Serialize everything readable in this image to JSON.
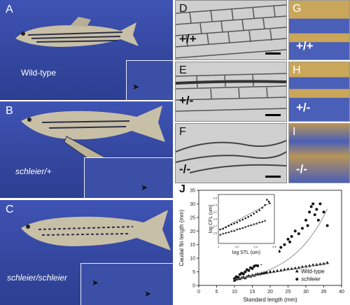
{
  "panels": {
    "A": {
      "label": "A",
      "caption": "Wild-type"
    },
    "B": {
      "label": "B",
      "caption": "schleier/+"
    },
    "C": {
      "label": "C",
      "caption": "schleier/schleier"
    },
    "D": {
      "label": "D",
      "genotype": "+/+"
    },
    "E": {
      "label": "E",
      "genotype": "+/-"
    },
    "F": {
      "label": "F",
      "genotype": "-/-"
    },
    "G": {
      "label": "G",
      "genotype": "+/+"
    },
    "H": {
      "label": "H",
      "genotype": "+/-"
    },
    "I": {
      "label": "I",
      "genotype": "-/-"
    },
    "J": {
      "label": "J"
    }
  },
  "colors": {
    "background_blue": "#34479f",
    "fin_blue": "#4a5fb8",
    "fin_gold": "#c9a65a"
  },
  "icons": [
    "arrowhead-icon"
  ],
  "chart_data": [
    {
      "type": "scatter",
      "xlabel": "Standard length (mm)",
      "ylabel": "Caudal fin length (mm)",
      "xlim": [
        0,
        40
      ],
      "ylim": [
        0,
        35
      ],
      "xticks": [
        "0",
        "5",
        "10",
        "15",
        "20",
        "25",
        "30",
        "35",
        "40"
      ],
      "yticks": [
        "0",
        "5",
        "10",
        "15",
        "20",
        "25",
        "30",
        "35"
      ],
      "legend": {
        "position": "bottom-right",
        "entries": [
          {
            "label": "Wild-type",
            "marker": "triangle"
          },
          {
            "label": "schleier",
            "marker": "circle"
          }
        ]
      },
      "series": [
        {
          "name": "Wild-type",
          "points": [
            [
              10,
              1.8
            ],
            [
              10.5,
              2.2
            ],
            [
              11,
              2.5
            ],
            [
              11.5,
              2.4
            ],
            [
              12,
              2.8
            ],
            [
              12.5,
              3
            ],
            [
              13,
              2.7
            ],
            [
              13.5,
              3.2
            ],
            [
              14,
              3.5
            ],
            [
              14.5,
              3.3
            ],
            [
              15,
              3.7
            ],
            [
              15.5,
              3.6
            ],
            [
              16,
              4
            ],
            [
              16.5,
              4.2
            ],
            [
              17,
              4.1
            ],
            [
              17.5,
              4.4
            ],
            [
              18,
              4.5
            ],
            [
              18.5,
              4.6
            ],
            [
              19,
              4.8
            ],
            [
              20,
              5
            ],
            [
              21,
              5.1
            ],
            [
              22,
              5.3
            ],
            [
              23,
              5.5
            ],
            [
              24,
              5.8
            ],
            [
              25,
              6
            ],
            [
              26,
              6.1
            ],
            [
              27,
              6.3
            ],
            [
              28,
              6.5
            ],
            [
              29,
              6.8
            ],
            [
              30,
              7
            ],
            [
              31,
              7.2
            ],
            [
              32,
              7.5
            ],
            [
              33,
              7.6
            ],
            [
              34,
              7.8
            ],
            [
              35,
              8
            ],
            [
              36,
              8.3
            ]
          ]
        },
        {
          "name": "schleier",
          "points": [
            [
              10,
              2.5
            ],
            [
              10.5,
              3.2
            ],
            [
              11,
              3
            ],
            [
              11.5,
              4
            ],
            [
              12,
              4.5
            ],
            [
              12.5,
              4.2
            ],
            [
              13,
              5
            ],
            [
              13.5,
              5.8
            ],
            [
              14,
              5.5
            ],
            [
              14.5,
              6.5
            ],
            [
              15,
              6.2
            ],
            [
              15.5,
              7
            ],
            [
              16,
              7.5
            ],
            [
              16.5,
              7.2
            ],
            [
              17,
              8.5
            ],
            [
              17.5,
              8
            ],
            [
              18,
              9
            ],
            [
              18.5,
              9.5
            ],
            [
              19,
              10
            ],
            [
              19.5,
              9.8
            ],
            [
              20,
              11
            ],
            [
              20.5,
              11.5
            ],
            [
              21,
              12
            ],
            [
              22,
              13
            ],
            [
              22.5,
              12.5
            ],
            [
              23,
              14
            ],
            [
              24,
              15
            ],
            [
              25,
              17
            ],
            [
              25.5,
              16
            ],
            [
              26,
              18
            ],
            [
              27,
              20
            ],
            [
              28,
              19
            ],
            [
              29,
              21
            ],
            [
              30,
              24
            ],
            [
              30.5,
              22
            ],
            [
              31,
              27
            ],
            [
              31.5,
              29
            ],
            [
              32,
              30
            ],
            [
              32.5,
              26
            ],
            [
              33,
              28
            ],
            [
              33.5,
              24
            ],
            [
              34,
              30
            ],
            [
              35,
              27
            ],
            [
              36,
              22
            ]
          ]
        }
      ]
    },
    {
      "type": "scatter",
      "xlabel": "log STL (um)",
      "ylabel": "log CFL (um)",
      "xlim": [
        4,
        4.6
      ],
      "ylim": [
        3.2,
        4.6
      ],
      "xticks": [
        "4",
        "4.2",
        "4.4",
        "4.6"
      ],
      "yticks": [
        "4.5",
        "4.3",
        "4.1",
        "3.9",
        "3.7",
        "3.5"
      ],
      "series": [
        {
          "name": "Wild-type",
          "points": [
            [
              4.02,
              3.45
            ],
            [
              4.05,
              3.48
            ],
            [
              4.08,
              3.5
            ],
            [
              4.11,
              3.52
            ],
            [
              4.14,
              3.55
            ],
            [
              4.17,
              3.56
            ],
            [
              4.2,
              3.6
            ],
            [
              4.23,
              3.62
            ],
            [
              4.26,
              3.64
            ],
            [
              4.29,
              3.67
            ],
            [
              4.32,
              3.7
            ],
            [
              4.35,
              3.72
            ],
            [
              4.38,
              3.75
            ],
            [
              4.41,
              3.77
            ],
            [
              4.44,
              3.8
            ],
            [
              4.47,
              3.82
            ],
            [
              4.5,
              3.85
            ]
          ]
        },
        {
          "name": "schleier",
          "points": [
            [
              4.02,
              3.6
            ],
            [
              4.05,
              3.62
            ],
            [
              4.08,
              3.66
            ],
            [
              4.11,
              3.7
            ],
            [
              4.14,
              3.74
            ],
            [
              4.17,
              3.77
            ],
            [
              4.2,
              3.8
            ],
            [
              4.23,
              3.85
            ],
            [
              4.26,
              3.88
            ],
            [
              4.29,
              3.92
            ],
            [
              4.32,
              3.96
            ],
            [
              4.35,
              4.0
            ],
            [
              4.38,
              4.05
            ],
            [
              4.41,
              4.1
            ],
            [
              4.44,
              4.15
            ],
            [
              4.47,
              4.22
            ],
            [
              4.5,
              4.3
            ],
            [
              4.52,
              4.45
            ],
            [
              4.54,
              4.4
            ],
            [
              4.55,
              4.35
            ]
          ]
        }
      ]
    }
  ]
}
